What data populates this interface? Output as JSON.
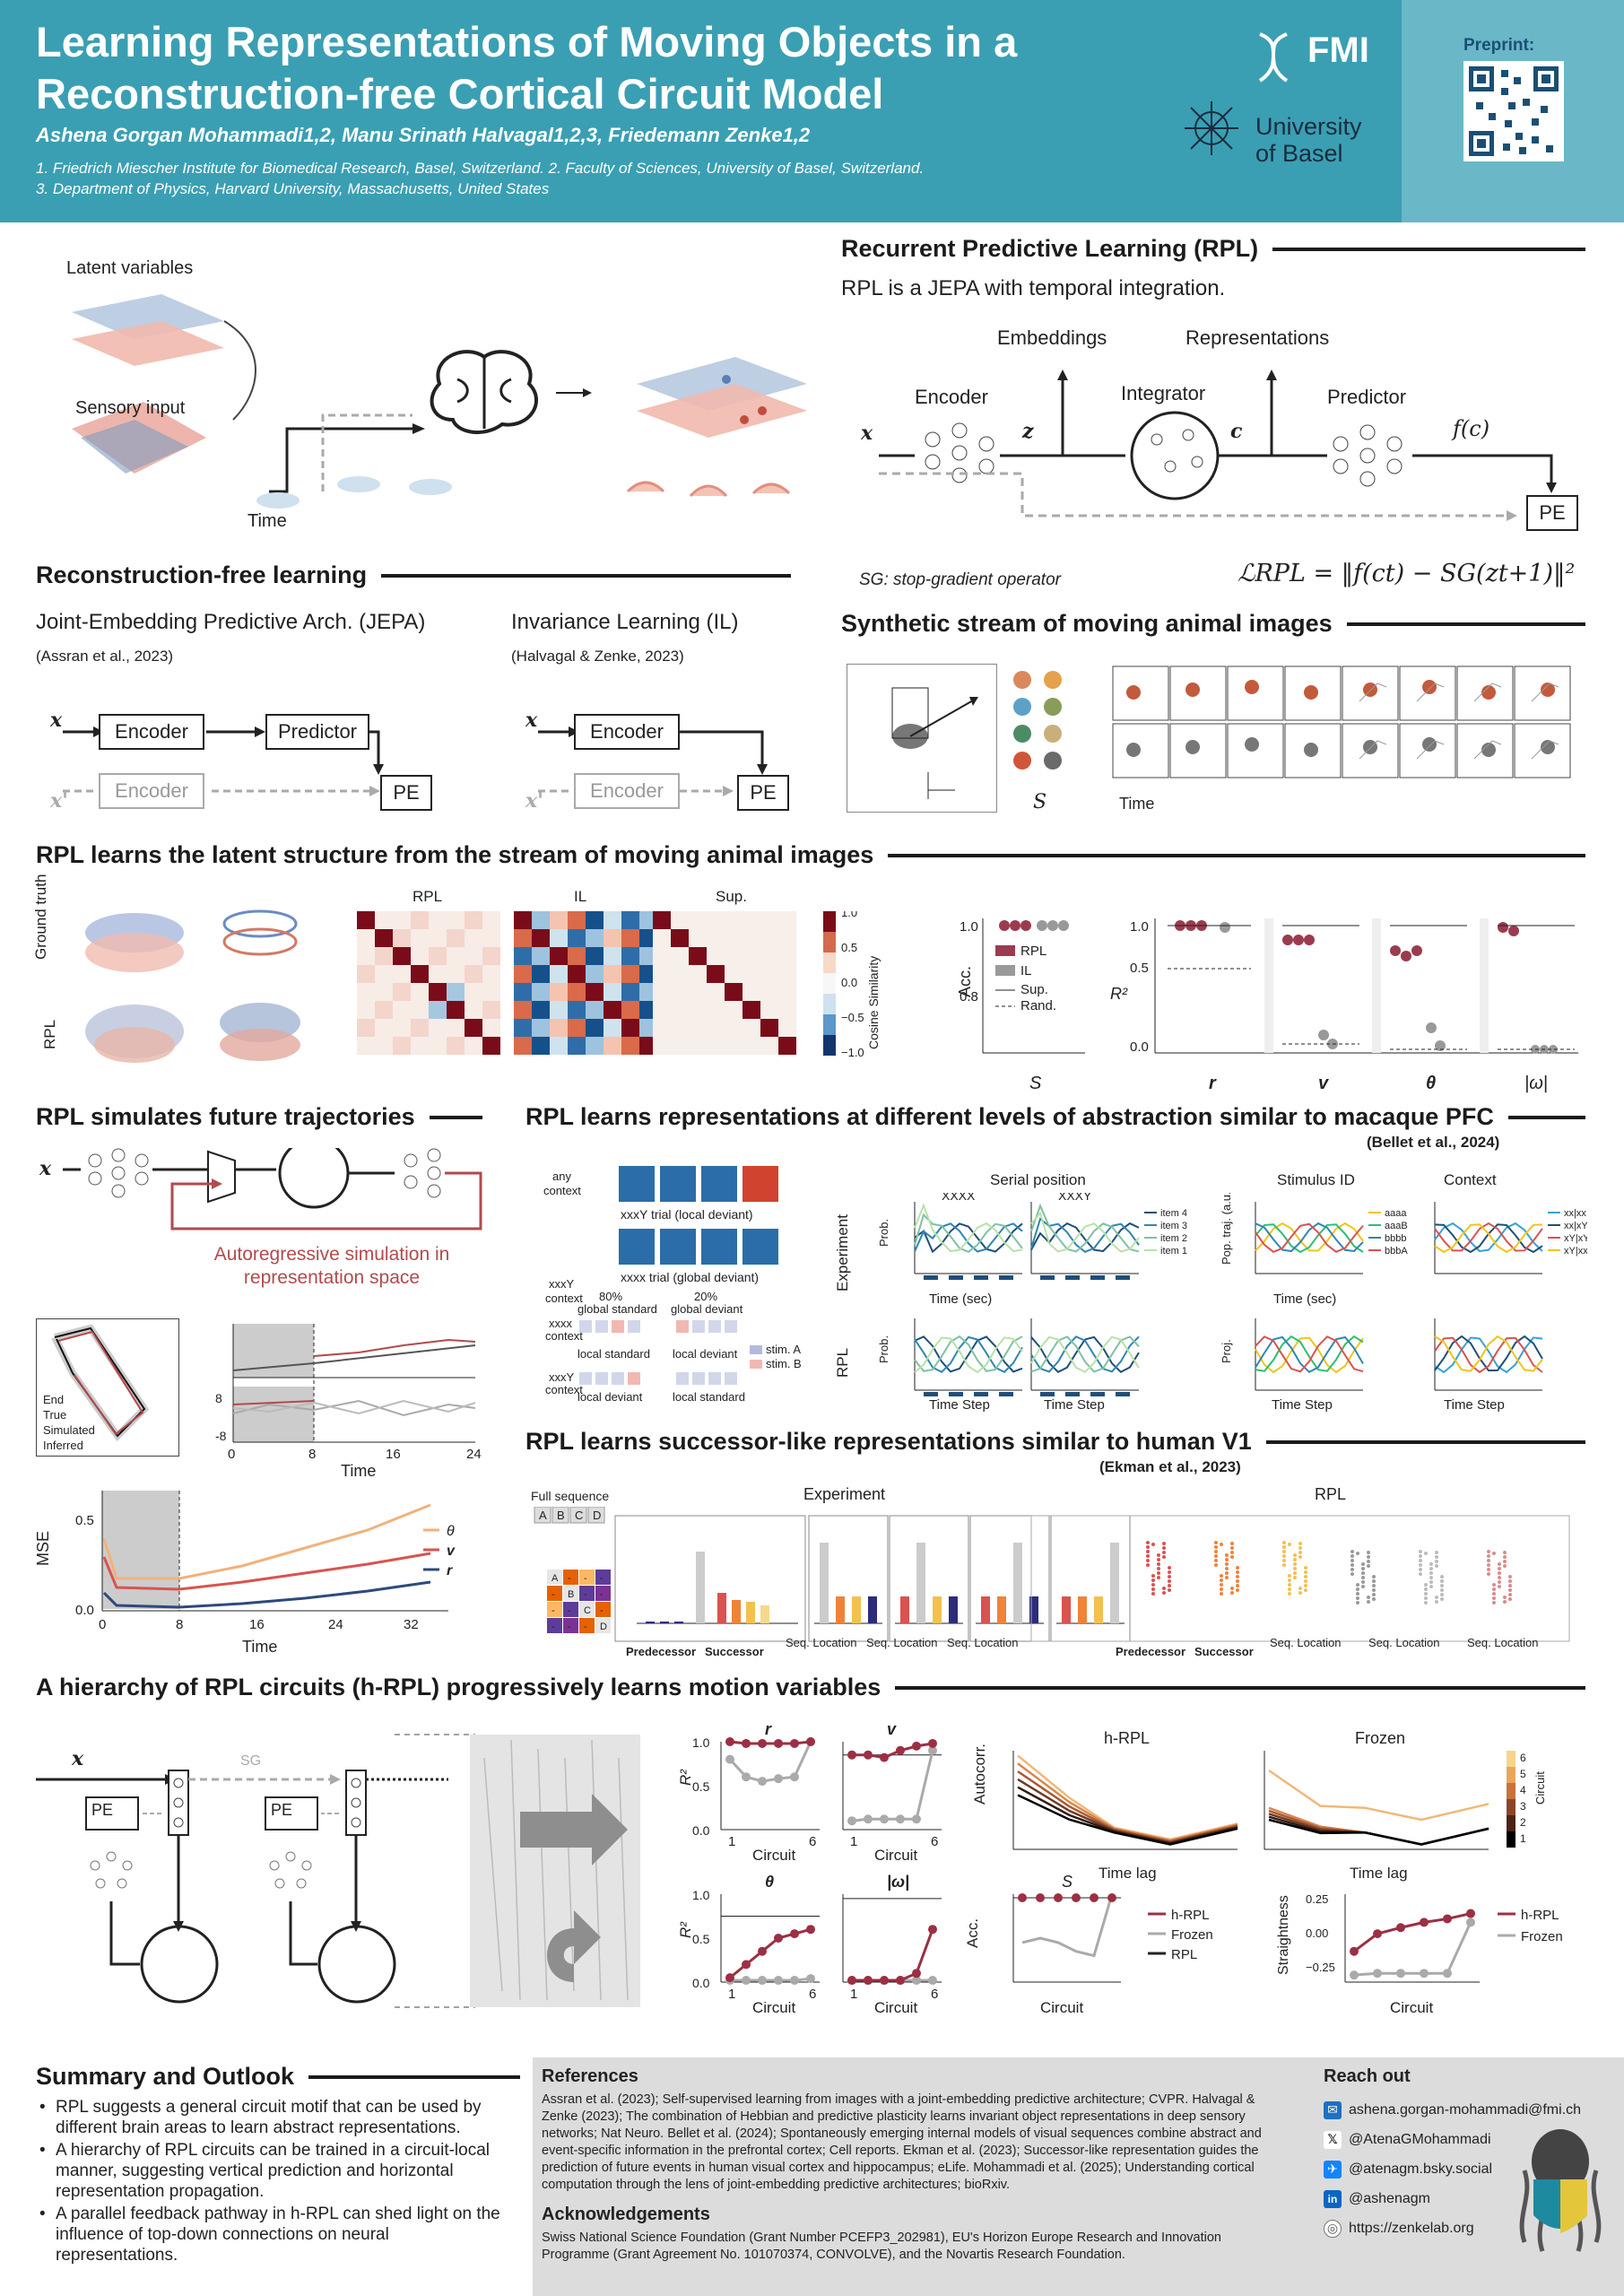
{
  "header": {
    "title_line1": "Learning Representations of Moving Objects in a",
    "title_line2": "Reconstruction-free Cortical Circuit Model",
    "authors": "Ashena Gorgan Mohammadi1,2, Manu Srinath Halvagal1,2,3, Friedemann Zenke1,2",
    "affil1": "1. Friedrich Miescher Institute for Biomedical Research, Basel, Switzerland. 2. Faculty of Sciences, University of Basel, Switzerland.",
    "affil2": "3. Department of Physics, Harvard University, Massachusetts, United States",
    "fmi": "FMI",
    "basel1": "University",
    "basel2": "of Basel",
    "preprint": "Preprint:"
  },
  "intro": {
    "latent": "Latent variables",
    "sensory": "Sensory input",
    "time": "Time"
  },
  "rpl": {
    "heading": "Recurrent Predictive Learning (RPL)",
    "desc": "RPL is a JEPA with temporal integration.",
    "embeddings": "Embeddings",
    "representations": "Representations",
    "encoder": "Encoder",
    "integrator": "Integrator",
    "predictor": "Predictor",
    "pe": "PE",
    "sg": "SG: stop-gradient operator",
    "loss": "ℒRPL = ‖f(ct) − SG(zt+1)‖²"
  },
  "recon": {
    "heading": "Reconstruction-free learning",
    "jepa_title": "Joint-Embedding Predictive Arch. (JEPA)",
    "jepa_cite": "(Assran et al., 2023)",
    "il_title": "Invariance Learning (IL)",
    "il_cite": "(Halvagal & Zenke, 2023)",
    "encoder": "Encoder",
    "predictor": "Predictor",
    "pe": "PE"
  },
  "synthetic": {
    "heading": "Synthetic stream of moving animal images",
    "time": "Time",
    "s": "S"
  },
  "latent_struct": {
    "heading": "RPL learns the latent structure from the stream of moving animal images",
    "ground_truth": "Ground truth",
    "rpl": "RPL",
    "rpl_col": "RPL",
    "il_col": "IL",
    "sup_col": "Sup.",
    "cbar_label": "Cosine Similarity",
    "acc_label": "Acc.",
    "r2_label": "R²",
    "legend": [
      "RPL",
      "IL",
      "Sup.",
      "Rand."
    ],
    "xcats": [
      "S",
      "r",
      "v",
      "θ",
      "|ω|"
    ]
  },
  "traj": {
    "heading": "RPL simulates future trajectories",
    "auto": "Autoregressive simulation in representation space",
    "legend": [
      "End",
      "True",
      "Simulated",
      "Inferred"
    ],
    "time": "Time",
    "mse": "MSE",
    "mse_legend": [
      "θ",
      "v",
      "r"
    ]
  },
  "pfc": {
    "heading": "RPL learns representations at different levels of abstraction similar to macaque PFC",
    "cite": "(Bellet et al., 2024)",
    "serial": "Serial position",
    "stimulus": "Stimulus ID",
    "context": "Context",
    "experiment": "Experiment",
    "rpl": "RPL",
    "time_sec": "Time (sec)",
    "time_step": "Time Step",
    "any_context": "any context",
    "local_dev": "xxxY trial (local deviant)",
    "global_dev": "xxxx trial (global deviant)"
  },
  "v1": {
    "heading": "RPL learns successor-like representations similar to human V1",
    "cite": "(Ekman et al., 2023)",
    "full_seq": "Full sequence",
    "experiment": "Experiment",
    "rpl": "RPL",
    "predecessor": "Predecessor",
    "successor": "Successor",
    "seq_loc": "Seq. Location"
  },
  "hrpl": {
    "heading": "A hierarchy of RPL circuits (h-RPL) progressively learns motion variables",
    "circuit": "Circuit",
    "autocorr": "Autocorr.",
    "timelag": "Time lag",
    "hrpl": "h-RPL",
    "frozen": "Frozen",
    "straightness": "Straightness",
    "legend": [
      "h-RPL",
      "Frozen",
      "RPL"
    ],
    "pe": "PE",
    "sg": "SG"
  },
  "summary": {
    "heading": "Summary and Outlook",
    "items": [
      "RPL suggests a general circuit motif that can be used by different brain areas to learn abstract representations.",
      "A hierarchy of RPL circuits can be trained in a circuit-local manner, suggesting vertical prediction and horizontal representation propagation.",
      "A parallel feedback pathway in h-RPL can shed light on the influence of top-down connections on neural representations."
    ]
  },
  "references": {
    "heading": "References",
    "text": "Assran et al. (2023); Self-supervised learning from images with a joint-embedding predictive architecture; CVPR. Halvagal & Zenke (2023); The combination of Hebbian and predictive plasticity learns invariant object representations in deep sensory networks; Nat Neuro. Bellet et al. (2024); Spontaneously emerging internal models of visual sequences combine abstract and event-specific information in the prefrontal cortex; Cell reports. Ekman et al. (2023); Successor-like representation guides the prediction of future events in human visual cortex and hippocampus; eLife. Mohammadi et al. (2025); Understanding cortical computation through the lens of joint-embedding predictive architectures; bioRxiv.",
    "ack_heading": "Acknowledgements",
    "ack": "Swiss National Science Foundation (Grant Number PCEFP3_202981), EU's Horizon Europe Research and Innovation Programme (Grant Agreement No. 101070374, CONVOLVE), and the Novartis Research Foundation."
  },
  "reach": {
    "heading": "Reach out",
    "email": "ashena.gorgan-mohammadi@fmi.ch",
    "twitter": "@AtenaGMohammadi",
    "bluesky": "@atenagm.bsky.social",
    "linkedin": "@ashenagm",
    "web": "https://zenkelab.org"
  }
}
